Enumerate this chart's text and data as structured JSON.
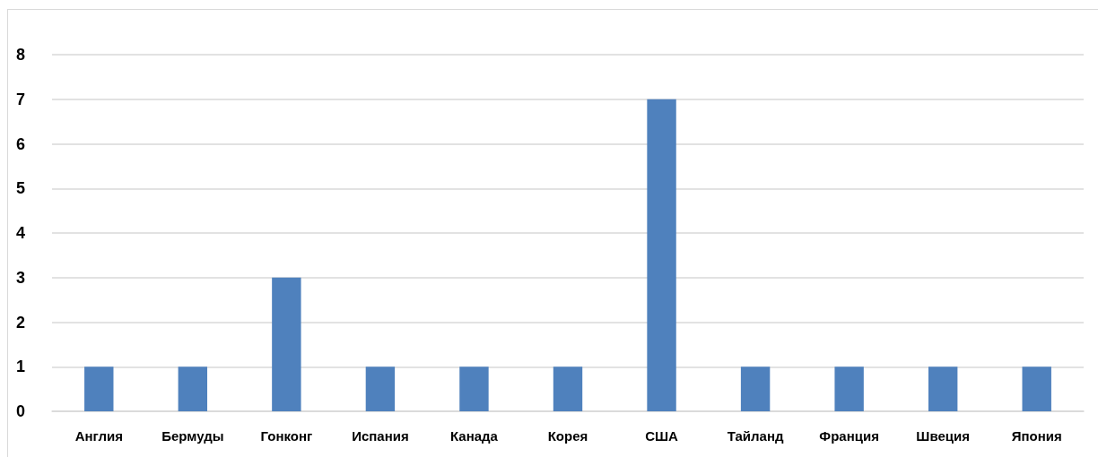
{
  "chart_data": {
    "type": "bar",
    "categories": [
      "Англия",
      "Бермуды",
      "Гонконг",
      "Испания",
      "Канада",
      "Корея",
      "США",
      "Тайланд",
      "Франция",
      "Швеция",
      "Япония"
    ],
    "values": [
      1,
      1,
      3,
      1,
      1,
      1,
      7,
      1,
      1,
      1,
      1
    ],
    "color": "#4f81bd",
    "ylim": [
      0,
      8
    ],
    "yticks": [
      0,
      1,
      2,
      3,
      4,
      5,
      6,
      7,
      8
    ],
    "grid": "y"
  }
}
